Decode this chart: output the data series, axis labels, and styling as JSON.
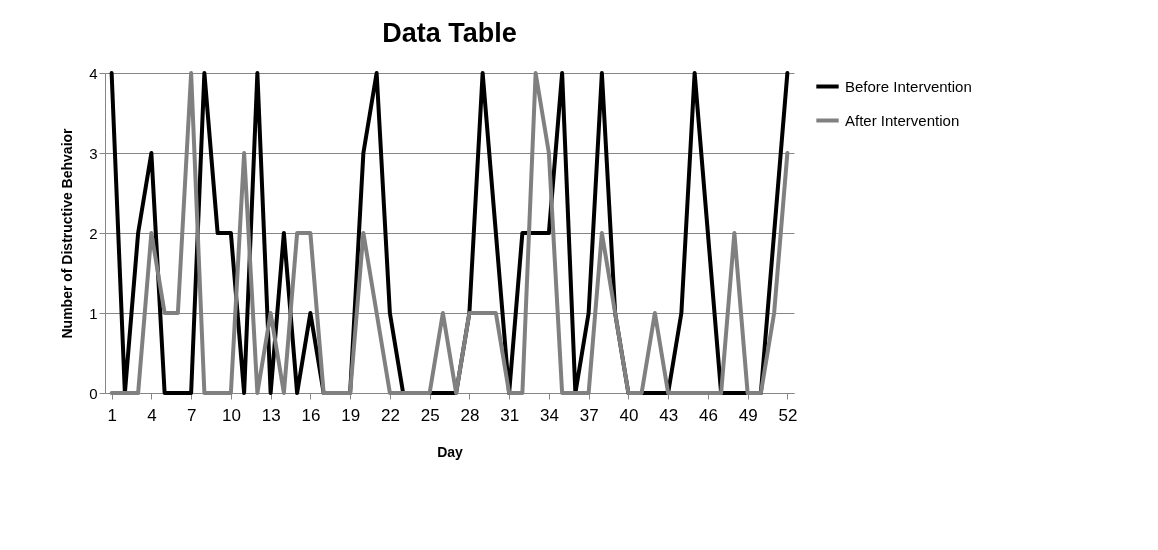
{
  "chart_data": {
    "type": "line",
    "title": "Data Table",
    "xlabel": "Day",
    "ylabel": "Number of Distructive Behvaior",
    "x": [
      1,
      2,
      3,
      4,
      5,
      6,
      7,
      8,
      9,
      10,
      11,
      12,
      13,
      14,
      15,
      16,
      17,
      18,
      19,
      20,
      21,
      22,
      23,
      24,
      25,
      26,
      27,
      28,
      29,
      30,
      31,
      32,
      33,
      34,
      35,
      36,
      37,
      38,
      39,
      40,
      41,
      42,
      43,
      44,
      45,
      46,
      47,
      48,
      49,
      50,
      51,
      52
    ],
    "series": [
      {
        "name": "Before Intervention",
        "color": "#000000",
        "values": [
          4,
          0,
          2,
          3,
          0,
          0,
          0,
          4,
          2,
          2,
          0,
          4,
          0,
          2,
          0,
          1,
          0,
          0,
          0,
          3,
          4,
          1,
          0,
          0,
          0,
          0,
          0,
          1,
          4,
          2,
          0,
          2,
          2,
          2,
          4,
          0,
          1,
          4,
          1,
          0,
          0,
          0,
          0,
          1,
          4,
          2,
          0,
          0,
          0,
          0,
          2,
          4
        ]
      },
      {
        "name": "After Intervention",
        "color": "#808080",
        "values": [
          0,
          0,
          0,
          2,
          1,
          1,
          4,
          0,
          0,
          0,
          3,
          0,
          1,
          0,
          2,
          2,
          0,
          0,
          0,
          2,
          1,
          0,
          0,
          0,
          0,
          1,
          0,
          1,
          1,
          1,
          0,
          0,
          4,
          3,
          0,
          0,
          0,
          2,
          1,
          0,
          0,
          1,
          0,
          0,
          0,
          0,
          0,
          2,
          0,
          0,
          1,
          3
        ]
      }
    ],
    "xlim": [
      0.5,
      52.5
    ],
    "xticks": [
      1,
      4,
      7,
      10,
      13,
      16,
      19,
      22,
      25,
      28,
      31,
      34,
      37,
      40,
      43,
      46,
      49,
      52
    ],
    "ylim": [
      0,
      4
    ],
    "yticks": [
      0,
      1,
      2,
      3,
      4
    ],
    "grid": "y",
    "legend": "right",
    "marker": "none",
    "line_style": "solid"
  }
}
